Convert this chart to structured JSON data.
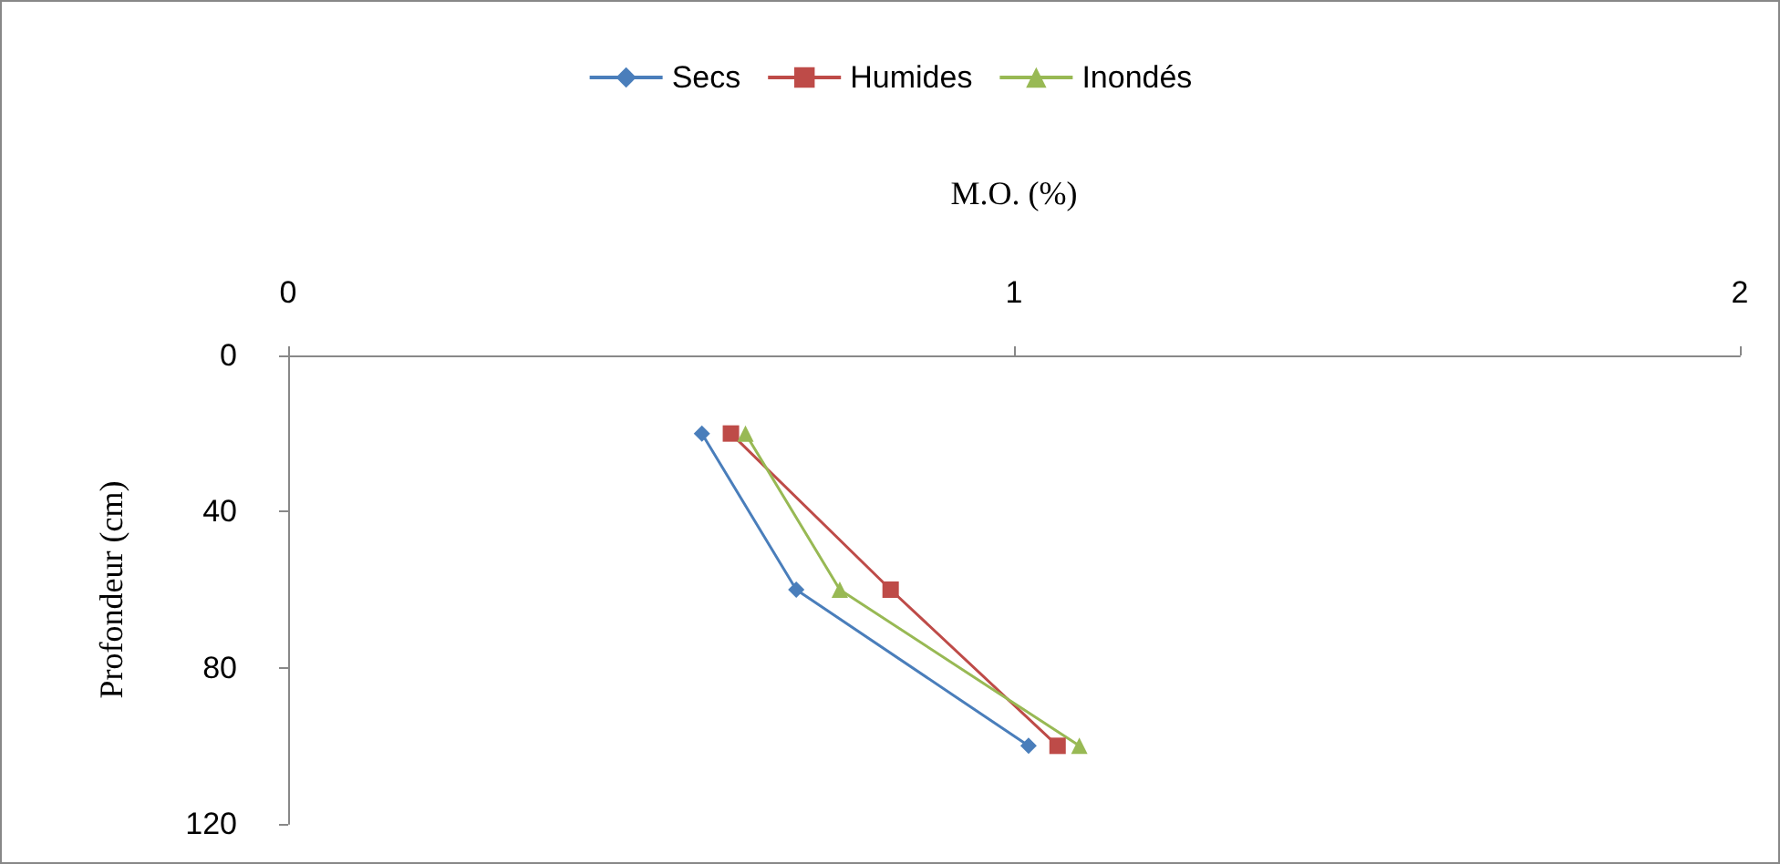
{
  "chart_data": {
    "type": "line",
    "xlabel": "M.O. (%)",
    "ylabel": "Profondeur (cm)",
    "xlim": [
      0,
      2
    ],
    "xticks": [
      0,
      1,
      2
    ],
    "ylim": [
      120,
      0
    ],
    "yticks": [
      0,
      40,
      80,
      120
    ],
    "grid": false,
    "legend": "top",
    "series": [
      {
        "name": "Secs",
        "color": "#4a7ebb",
        "marker": "diamond",
        "x": [
          0.57,
          0.7,
          1.02
        ],
        "values": [
          20,
          60,
          100
        ]
      },
      {
        "name": "Humides",
        "color": "#be4b48",
        "marker": "square",
        "x": [
          0.61,
          0.83,
          1.06
        ],
        "values": [
          20,
          60,
          100
        ]
      },
      {
        "name": "Inondés",
        "color": "#98b954",
        "marker": "triangle",
        "x": [
          0.63,
          0.76,
          1.09
        ],
        "values": [
          20,
          60,
          100
        ]
      }
    ]
  }
}
